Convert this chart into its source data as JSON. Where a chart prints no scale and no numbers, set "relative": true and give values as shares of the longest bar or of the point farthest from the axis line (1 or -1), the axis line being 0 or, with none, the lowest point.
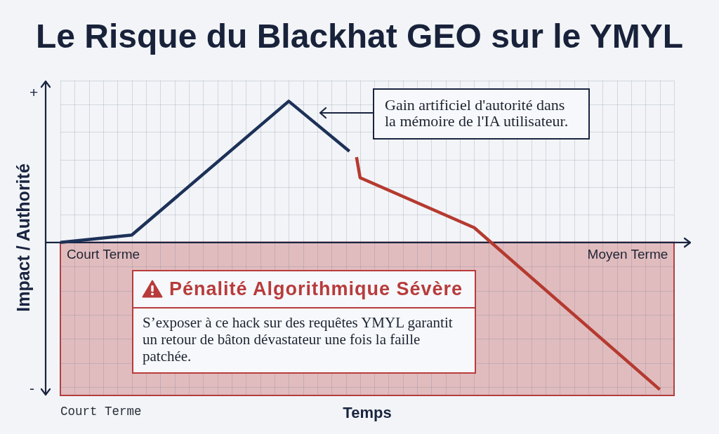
{
  "chart_data": {
    "type": "line",
    "relative": true,
    "title": "Le Risque du Blackhat GEO sur le YMYL",
    "xlabel": "Temps",
    "ylabel": "Impact / Authorité",
    "categories": [
      null,
      null,
      null,
      null,
      null,
      null,
      null,
      null,
      null,
      null,
      null,
      null,
      "Court Terme",
      null,
      null,
      null,
      null,
      null,
      null,
      null,
      null,
      null,
      null,
      null,
      null,
      null,
      null,
      null,
      null,
      null,
      null,
      null,
      null,
      null,
      null,
      null,
      null,
      null,
      null,
      null,
      null,
      null,
      null,
      null,
      null,
      null,
      null,
      null,
      null,
      null,
      null,
      null,
      null,
      null,
      null,
      null,
      null,
      null,
      null,
      null,
      null,
      null,
      null,
      null,
      null,
      null,
      null,
      null,
      null,
      null,
      null,
      null,
      null,
      null,
      null,
      null,
      null,
      null,
      null,
      null,
      null,
      null,
      null,
      null,
      null,
      null,
      null,
      null,
      null,
      null,
      null,
      null,
      null,
      null,
      null,
      null,
      null,
      null,
      null,
      null,
      null,
      null,
      null,
      null,
      null,
      null,
      null,
      null,
      null,
      null,
      null,
      null,
      null,
      null,
      null,
      null,
      null,
      null,
      null,
      null,
      null,
      null,
      null,
      null,
      null,
      null,
      null,
      null,
      null,
      null,
      null,
      null,
      null,
      null,
      null,
      null,
      null,
      null,
      null,
      null,
      null,
      null,
      null,
      null,
      null,
      null,
      null,
      null,
      null,
      null,
      null,
      null,
      null,
      null,
      null,
      null,
      null,
      null,
      null,
      "Moyen Terme",
      null,
      null,
      null,
      null,
      null,
      null,
      null,
      null,
      null,
      null,
      null,
      null,
      null
    ],
    "series": [
      {
        "color": "#1d3158",
        "values": [
          0,
          null,
          null,
          null,
          null,
          null,
          null,
          null,
          null,
          null,
          null,
          null,
          null,
          null,
          null,
          null,
          null,
          null,
          null,
          null,
          0.05,
          null,
          null,
          null,
          null,
          null,
          null,
          null,
          null,
          null,
          null,
          null,
          null,
          null,
          null,
          null,
          null,
          null,
          null,
          null,
          null,
          null,
          null,
          null,
          null,
          null,
          null,
          null,
          null,
          null,
          null,
          null,
          null,
          null,
          null,
          null,
          null,
          null,
          null,
          null,
          null,
          null,
          null,
          null,
          0.96,
          null,
          null,
          null,
          null,
          null,
          null,
          null,
          null,
          null,
          null,
          null,
          null,
          null,
          null,
          null,
          null,
          0.62,
          null,
          null,
          null,
          null,
          null,
          null,
          null,
          null,
          null,
          null,
          null,
          null,
          null,
          null,
          null,
          null,
          null,
          null,
          null,
          null,
          null,
          null,
          null,
          null,
          null,
          null,
          null,
          null,
          null,
          null,
          null,
          null,
          null,
          null,
          null,
          null,
          null,
          null,
          null,
          null,
          null,
          null,
          null,
          null,
          null,
          null,
          null,
          null,
          null,
          null,
          null,
          null,
          null,
          null,
          null,
          null,
          null,
          null,
          null,
          null,
          null,
          null,
          null,
          null,
          null,
          null,
          null,
          null,
          null,
          null,
          null,
          null,
          null,
          null,
          null,
          null,
          null,
          null,
          null,
          null,
          null,
          null,
          null,
          null,
          null,
          null,
          null,
          null,
          null,
          null,
          null
        ]
      },
      {
        "color": "#b53a30",
        "values": [
          null,
          null,
          null,
          null,
          null,
          null,
          null,
          null,
          null,
          null,
          null,
          null,
          null,
          null,
          null,
          null,
          null,
          null,
          null,
          null,
          null,
          null,
          null,
          null,
          null,
          null,
          null,
          null,
          null,
          null,
          null,
          null,
          null,
          null,
          null,
          null,
          null,
          null,
          null,
          null,
          null,
          null,
          null,
          null,
          null,
          null,
          null,
          null,
          null,
          null,
          null,
          null,
          null,
          null,
          null,
          null,
          null,
          null,
          null,
          null,
          null,
          null,
          null,
          null,
          null,
          null,
          null,
          null,
          null,
          null,
          null,
          null,
          null,
          null,
          null,
          null,
          null,
          null,
          null,
          null,
          null,
          null,
          null,
          0.58,
          0.44,
          null,
          null,
          null,
          null,
          null,
          null,
          null,
          null,
          null,
          null,
          null,
          null,
          null,
          null,
          null,
          null,
          null,
          null,
          null,
          null,
          null,
          null,
          null,
          null,
          null,
          null,
          null,
          null,
          null,
          null,
          null,
          0.1,
          null,
          null,
          null,
          null,
          null,
          null,
          null,
          null,
          null,
          null,
          null,
          null,
          null,
          null,
          null,
          null,
          null,
          null,
          null,
          null,
          null,
          null,
          null,
          null,
          null,
          null,
          null,
          null,
          null,
          null,
          null,
          null,
          null,
          null,
          null,
          null,
          null,
          null,
          null,
          null,
          null,
          null,
          null,
          null,
          null,
          null,
          null,
          null,
          null,
          null,
          null,
          -1,
          null,
          null,
          null,
          null
        ]
      }
    ],
    "bands": [
      {
        "axis": "y",
        "from": -1.04,
        "to": 0,
        "label": "Pénalité Algorithmique Sévère",
        "color": "#b83b3b"
      }
    ],
    "annotations": [
      "+",
      "-",
      "Gain artificiel d'autorité dans la mémoire de l'IA utilisateur.",
      "S’exposer à ce hack sur des requêtes YMYL garantit un retour de bâton dévastateur une fois la faille patchée.",
      "Court Terme"
    ],
    "grid": true,
    "line_style": "solid"
  }
}
